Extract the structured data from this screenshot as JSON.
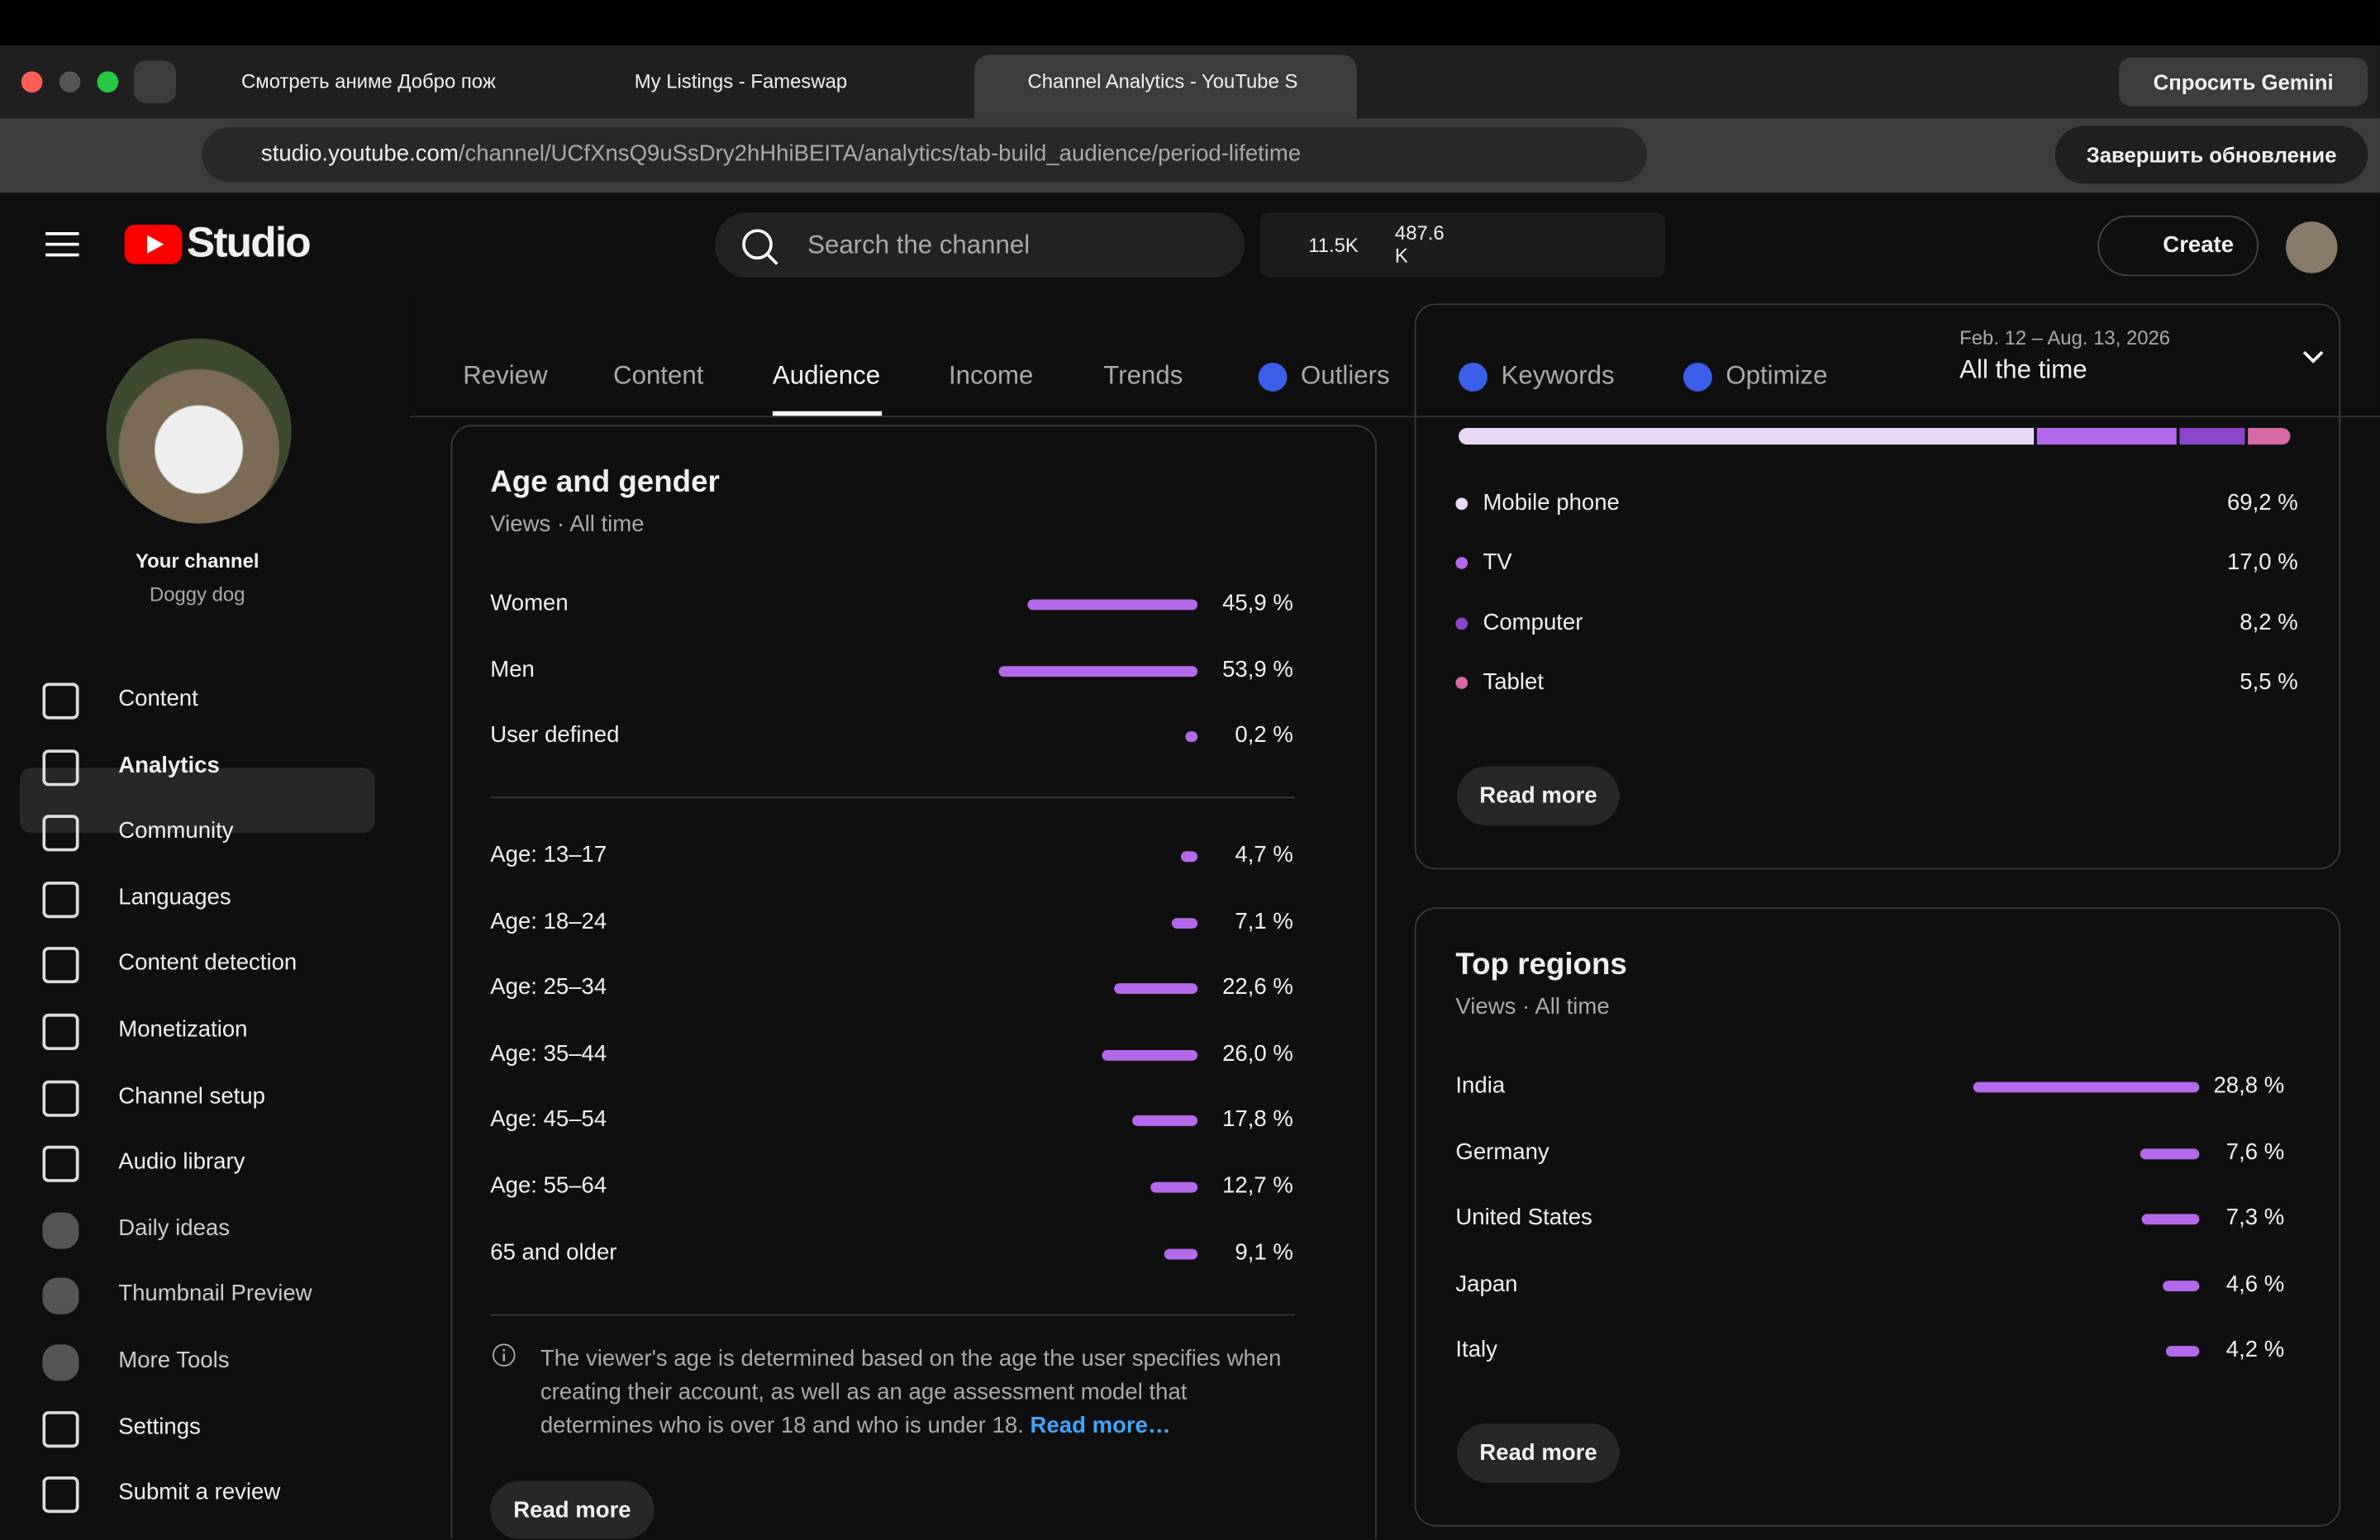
{
  "browser": {
    "tabs": [
      "Смотреть аниме Добро пож",
      "My Listings - Fameswap",
      "Channel Analytics - YouTube S"
    ],
    "url_host": "studio.youtube.com",
    "url_path": "/channel/UCfXnsQ9uSsDry2hHhiBEITA/analytics/tab-build_audience/period-lifetime",
    "gemini": "Спросить Gemini",
    "update": "Завершить обновление"
  },
  "header": {
    "logo": "Studio",
    "search": "Search the channel",
    "views": "11.5K",
    "subs": "487.6 K",
    "create": "Create"
  },
  "sidebar": {
    "your_channel": "Your channel",
    "channel_name": "Doggy dog",
    "items": [
      "Content",
      "Analytics",
      "Community",
      "Languages",
      "Content detection",
      "Monetization",
      "Channel setup",
      "Audio library",
      "Daily ideas",
      "Thumbnail Preview",
      "More Tools",
      "Settings",
      "Submit a review"
    ]
  },
  "tabs": [
    "Review",
    "Content",
    "Audience",
    "Income",
    "Trends",
    "Outliers",
    "Keywords",
    "Optimize"
  ],
  "date": {
    "range": "Feb. 12 – Aug. 13, 2026",
    "period": "All the time"
  },
  "devices": {
    "items": [
      {
        "label": "Mobile phone",
        "value": 69.2,
        "value_label": "69,2 %",
        "color": "#e9d8f7"
      },
      {
        "label": "TV",
        "value": 17.0,
        "value_label": "17,0 %",
        "color": "#b469ea"
      },
      {
        "label": "Computer",
        "value": 8.2,
        "value_label": "8,2 %",
        "color": "#8a45cc"
      },
      {
        "label": "Tablet",
        "value": 5.5,
        "value_label": "5,5 %",
        "color": "#d66aa5"
      }
    ],
    "button": "Read more"
  },
  "age_gender": {
    "title": "Age and gender",
    "subtitle": "Views · All time",
    "gender": [
      {
        "label": "Women",
        "value": 45.9,
        "value_label": "45,9 %"
      },
      {
        "label": "Men",
        "value": 53.9,
        "value_label": "53,9 %"
      },
      {
        "label": "User defined",
        "value": 0.2,
        "value_label": "0,2 %"
      }
    ],
    "age": [
      {
        "label": "Age: 13–17",
        "value": 4.7,
        "value_label": "4,7 %"
      },
      {
        "label": "Age: 18–24",
        "value": 7.1,
        "value_label": "7,1 %"
      },
      {
        "label": "Age: 25–34",
        "value": 22.6,
        "value_label": "22,6 %"
      },
      {
        "label": "Age: 35–44",
        "value": 26.0,
        "value_label": "26,0 %"
      },
      {
        "label": "Age: 45–54",
        "value": 17.8,
        "value_label": "17,8 %"
      },
      {
        "label": "Age: 55–64",
        "value": 12.7,
        "value_label": "12,7 %"
      },
      {
        "label": "65 and older",
        "value": 9.1,
        "value_label": "9,1 %"
      }
    ],
    "note": "The viewer's age is determined based on the age the user specifies when creating their account, as well as an age assessment model that determines who is over 18 and who is under 18.",
    "note_link": "Read more…",
    "button": "Read more"
  },
  "regions": {
    "title": "Top regions",
    "subtitle": "Views · All time",
    "items": [
      {
        "label": "India",
        "value": 28.8,
        "value_label": "28,8 %"
      },
      {
        "label": "Germany",
        "value": 7.6,
        "value_label": "7,6 %"
      },
      {
        "label": "United States",
        "value": 7.3,
        "value_label": "7,3 %"
      },
      {
        "label": "Japan",
        "value": 4.6,
        "value_label": "4,6 %"
      },
      {
        "label": "Italy",
        "value": 4.2,
        "value_label": "4,2 %"
      }
    ],
    "button": "Read more"
  }
}
